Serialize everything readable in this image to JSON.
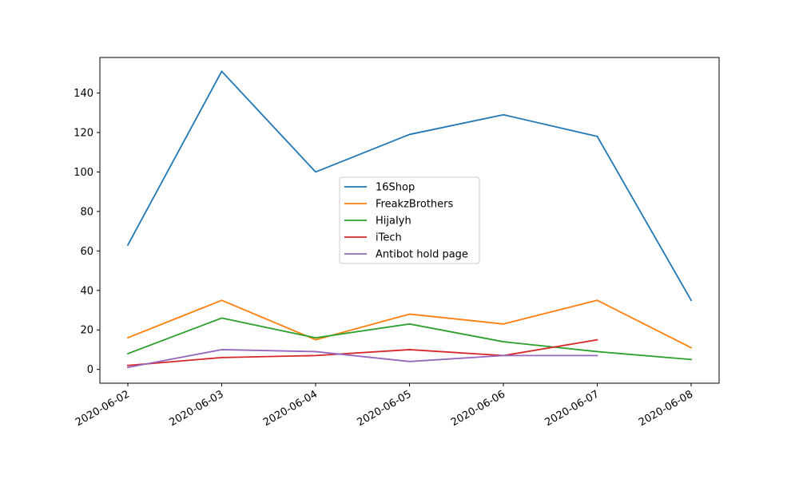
{
  "chart_data": {
    "type": "line",
    "title": "",
    "xlabel": "",
    "ylabel": "",
    "x": [
      "2020-06-02",
      "2020-06-03",
      "2020-06-04",
      "2020-06-05",
      "2020-06-06",
      "2020-06-07",
      "2020-06-08"
    ],
    "ylim": [
      -7,
      158
    ],
    "yticks": [
      0,
      20,
      40,
      60,
      80,
      100,
      120,
      140
    ],
    "grid": false,
    "legend_position": "center",
    "series": [
      {
        "name": "16Shop",
        "color": "#1f77b4",
        "values": [
          63,
          151,
          100,
          119,
          129,
          118,
          35
        ]
      },
      {
        "name": "FreakzBrothers",
        "color": "#ff7f0e",
        "values": [
          16,
          35,
          15,
          28,
          23,
          35,
          11
        ]
      },
      {
        "name": "HijaIyh",
        "color": "#2ca02c",
        "values": [
          8,
          26,
          16,
          23,
          14,
          9,
          5
        ]
      },
      {
        "name": "iTech",
        "color": "#d62728",
        "values": [
          2,
          6,
          7,
          10,
          7,
          15,
          null
        ]
      },
      {
        "name": "Antibot hold page",
        "color": "#9467bd",
        "values": [
          1,
          10,
          9,
          4,
          7,
          7,
          null
        ]
      }
    ]
  }
}
